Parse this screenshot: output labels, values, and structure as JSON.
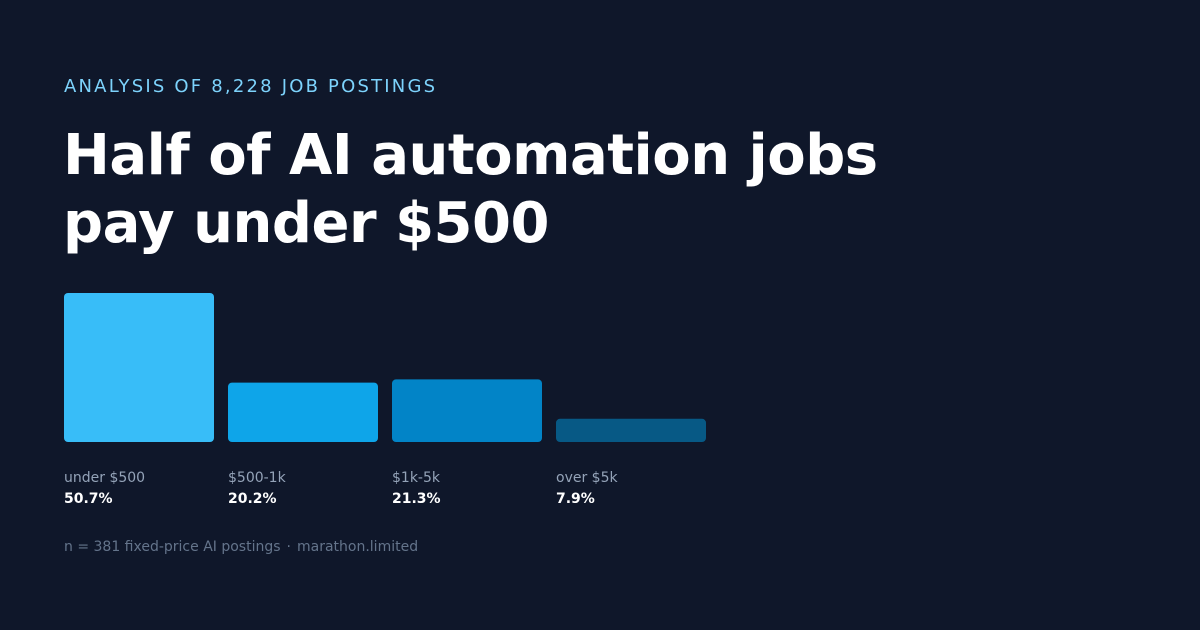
{
  "header": {
    "kicker": "ANALYSIS OF 8,228 JOB POSTINGS",
    "title_line1": "Half of AI automation jobs",
    "title_line2": "pay under $500"
  },
  "footer": {
    "sample": "n = 381 fixed-price AI postings",
    "separator": "·",
    "source": "marathon.limited"
  },
  "colors": {
    "background": "#0f172a",
    "kicker": "#7dd3fc",
    "category_label": "#94a3b8",
    "value_label": "#ffffff",
    "bars": [
      "#38bdf8",
      "#0ea5e9",
      "#0284c7",
      "#075985"
    ]
  },
  "chart_data": {
    "type": "bar",
    "categories": [
      "under $500",
      "$500-1k",
      "$1k-5k",
      "over $5k"
    ],
    "values": [
      50.7,
      20.2,
      21.3,
      7.9
    ],
    "value_labels": [
      "50.7%",
      "20.2%",
      "21.3%",
      "7.9%"
    ],
    "unit": "%",
    "title": "",
    "xlabel": "",
    "ylabel": "",
    "grid": false,
    "legend": "none"
  }
}
